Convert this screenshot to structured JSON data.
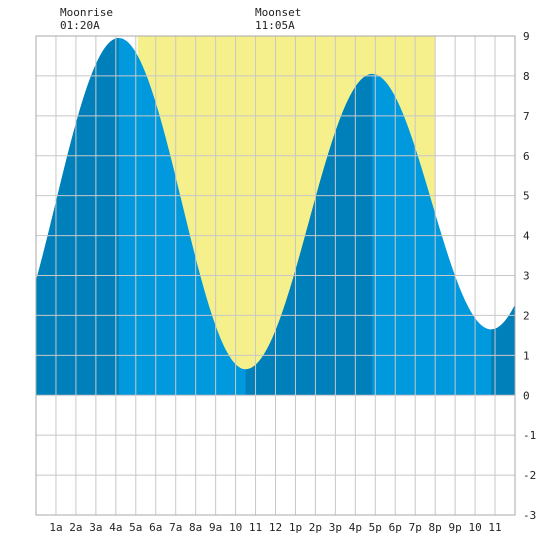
{
  "header": {
    "moonrise_label": "Moonrise",
    "moonrise_time": "01:20A",
    "moonset_label": "Moonset",
    "moonset_time": "11:05A"
  },
  "colors": {
    "background": "#ffffff",
    "grid": "#c8c8c8",
    "border": "#aaaaaa",
    "daylight": "#f5f08c",
    "tide_light": "#0099dd",
    "tide_dark": "#0080bb"
  },
  "chart_data": {
    "type": "area",
    "title": "",
    "xlabel": "",
    "ylabel": "",
    "xlim": [
      0,
      24
    ],
    "ylim": [
      -3,
      9
    ],
    "x_tick_labels": [
      "1a",
      "2a",
      "3a",
      "4a",
      "5a",
      "6a",
      "7a",
      "8a",
      "9a",
      "10",
      "11",
      "12",
      "1p",
      "2p",
      "3p",
      "4p",
      "5p",
      "6p",
      "7p",
      "8p",
      "9p",
      "10",
      "11"
    ],
    "y_ticks": [
      -3,
      -2,
      -1,
      0,
      1,
      2,
      3,
      4,
      5,
      6,
      7,
      8,
      9
    ],
    "daylight": {
      "start": 5.1,
      "end": 20.0
    },
    "tide_extremes": [
      {
        "type": "high",
        "time": 4.15,
        "height": 8.95
      },
      {
        "type": "low",
        "time": 10.5,
        "height": 0.65
      },
      {
        "type": "high",
        "time": 16.85,
        "height": 8.05
      },
      {
        "type": "low",
        "time": 22.8,
        "height": 1.65
      }
    ],
    "tide_start": {
      "time": 0,
      "height": 3.65
    },
    "tide_end": {
      "time": 24,
      "height": 2.3
    },
    "shade_bands": [
      [
        0,
        4.15
      ],
      [
        10.5,
        16.85
      ],
      [
        22.8,
        24
      ]
    ],
    "legend": "none",
    "grid": true
  }
}
